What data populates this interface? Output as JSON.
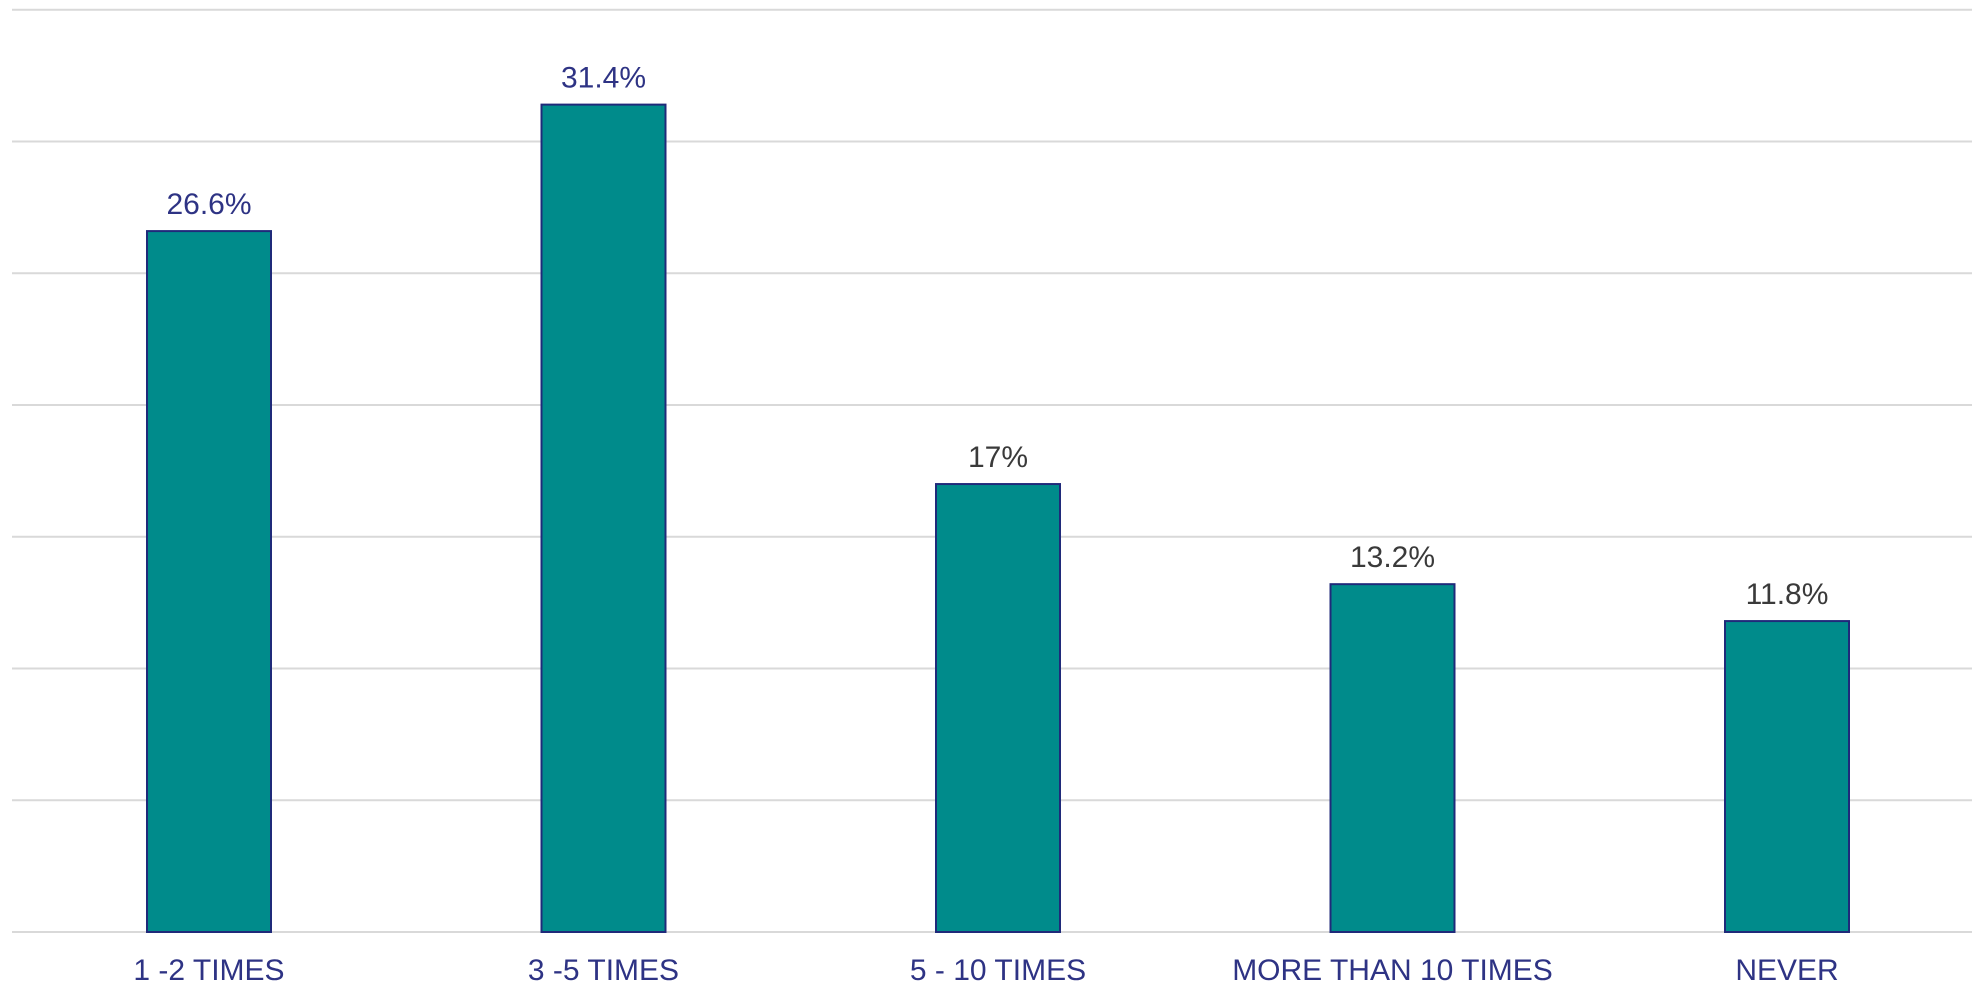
{
  "chart_data": {
    "type": "bar",
    "title": "",
    "xlabel": "",
    "ylabel": "",
    "categories": [
      "1 -2 TIMES",
      "3 -5 TIMES",
      "5 - 10 TIMES",
      "MORE THAN 10 TIMES",
      "NEVER"
    ],
    "values": [
      26.6,
      31.4,
      17,
      13.2,
      11.8
    ],
    "value_labels": [
      "26.6%",
      "31.4%",
      "17%",
      "13.2%",
      "11.8%"
    ],
    "ylim": [
      0,
      35
    ],
    "grid": true,
    "y_tick_labels_shown": false,
    "legend": "none"
  },
  "colors": {
    "bar_fill": "#008B8B",
    "bar_stroke": "#1F2A7A",
    "category_label": "#2E3384",
    "value_label_blue": "#2E3384",
    "value_label_dark": "#3A3A3A",
    "gridline": "#D9D9D9",
    "baseline": "#D9D9D9"
  }
}
